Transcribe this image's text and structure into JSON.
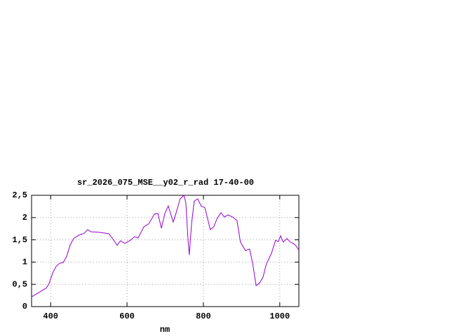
{
  "chart_data": {
    "type": "line",
    "title": "sr_2026_075_MSE__y02_r_rad 17-40-00",
    "x_label": "nm",
    "x": [
      350,
      368,
      381,
      389,
      396,
      405,
      414,
      423,
      433,
      442,
      451,
      460,
      473,
      488,
      497,
      506,
      525,
      552,
      561,
      574,
      583,
      594,
      609,
      620,
      629,
      644,
      657,
      672,
      681,
      690,
      699,
      708,
      721,
      728,
      739,
      749,
      754,
      760,
      763,
      769,
      776,
      785,
      794,
      804,
      818,
      827,
      836,
      846,
      855,
      864,
      877,
      888,
      897,
      910,
      921,
      929,
      938,
      947,
      956,
      965,
      978,
      989,
      996,
      1002,
      1009,
      1019,
      1026,
      1035,
      1041,
      1050
    ],
    "series": [
      {
        "color": "#9400d3",
        "values": [
          0.22,
          0.31,
          0.38,
          0.42,
          0.52,
          0.75,
          0.9,
          0.97,
          0.99,
          1.13,
          1.38,
          1.53,
          1.6,
          1.65,
          1.73,
          1.68,
          1.67,
          1.64,
          1.54,
          1.38,
          1.48,
          1.42,
          1.49,
          1.57,
          1.54,
          1.79,
          1.86,
          2.08,
          2.09,
          1.76,
          2.09,
          2.26,
          1.9,
          2.09,
          2.42,
          2.5,
          2.33,
          1.46,
          1.16,
          1.86,
          2.37,
          2.42,
          2.26,
          2.22,
          1.73,
          1.79,
          1.98,
          2.11,
          2.01,
          2.06,
          2.01,
          1.93,
          1.45,
          1.26,
          1.29,
          0.97,
          0.47,
          0.53,
          0.66,
          0.96,
          1.19,
          1.49,
          1.46,
          1.59,
          1.45,
          1.53,
          1.46,
          1.42,
          1.38,
          1.27
        ]
      }
    ],
    "xlim": [
      350,
      1050
    ],
    "xticks": [
      400,
      600,
      800,
      1000
    ],
    "ylim": [
      0,
      2.5
    ],
    "yticks": [
      0,
      {
        "value": 0.5,
        "label": "0,5"
      },
      1,
      {
        "value": 1.5,
        "label": "1,5"
      },
      2,
      {
        "value": 2.5,
        "label": "2,5"
      }
    ],
    "grid": true
  }
}
